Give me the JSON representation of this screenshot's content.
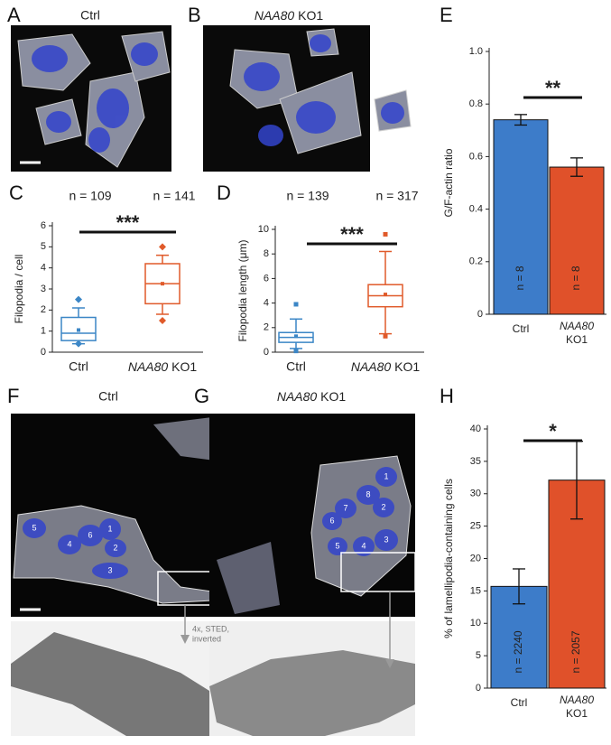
{
  "panels": {
    "A": {
      "label": "A",
      "title": "Ctrl"
    },
    "B": {
      "label": "B",
      "title": {
        "gene": "NAA80",
        "text": "KO1"
      }
    },
    "F": {
      "label": "F",
      "title": "Ctrl",
      "cell_labels": [
        "5",
        "6",
        "1",
        "4",
        "2",
        "3"
      ],
      "annotation": [
        "4x, STED,",
        "inverted"
      ]
    },
    "G": {
      "label": "G",
      "title": {
        "gene": "NAA80",
        "text": "KO1"
      },
      "cell_labels": [
        "1",
        "8",
        "7",
        "2",
        "6",
        "3",
        "5",
        "4"
      ]
    }
  },
  "charts": [
    {
      "panel": "C",
      "type": "box",
      "ylabel": "Filopodia / cell",
      "ylim": [
        0,
        6
      ],
      "yticks": [
        0,
        1,
        2,
        3,
        4,
        5,
        6
      ],
      "categories": [
        {
          "text": "Ctrl"
        },
        {
          "gene": "NAA80",
          "text": "KO1"
        }
      ],
      "n_labels": [
        "n = 109",
        "n = 141"
      ],
      "significance": "***",
      "outlier_marker": "diamond",
      "colors": [
        "#3b86c6",
        "#e05a2a"
      ],
      "boxes": [
        {
          "whisker_low": 0.4,
          "q1": 0.55,
          "median": 0.9,
          "q3": 1.65,
          "whisker_high": 2.1,
          "mean": 1.05,
          "outliers": [
            2.5,
            0.4
          ]
        },
        {
          "whisker_low": 1.8,
          "q1": 2.3,
          "median": 3.25,
          "q3": 4.2,
          "whisker_high": 4.6,
          "mean": 3.25,
          "outliers": [
            5.0,
            1.5
          ]
        }
      ]
    },
    {
      "panel": "D",
      "type": "box",
      "ylabel": "Filopodia length (μm)",
      "ylim": [
        0,
        10
      ],
      "yticks": [
        0,
        2,
        4,
        6,
        8,
        10
      ],
      "categories": [
        {
          "text": "Ctrl"
        },
        {
          "gene": "NAA80",
          "text": "KO1"
        }
      ],
      "n_labels": [
        "n = 139",
        "n = 317"
      ],
      "significance": "***",
      "outlier_marker": "square",
      "colors": [
        "#3b86c6",
        "#e05a2a"
      ],
      "boxes": [
        {
          "whisker_low": 0.3,
          "q1": 0.8,
          "median": 1.2,
          "q3": 1.6,
          "whisker_high": 2.7,
          "mean": 1.3,
          "outliers": [
            3.9,
            0.1
          ]
        },
        {
          "whisker_low": 1.5,
          "q1": 3.7,
          "median": 4.6,
          "q3": 5.5,
          "whisker_high": 8.2,
          "mean": 4.7,
          "outliers": [
            9.6,
            1.3
          ]
        }
      ]
    },
    {
      "panel": "E",
      "type": "bar",
      "ylabel": "G/F-actin ratio",
      "ylim": [
        0,
        1.0
      ],
      "yticks": [
        0,
        0.2,
        0.4,
        0.6,
        0.8,
        {
          "value": 1.0,
          "label": "1.0"
        }
      ],
      "categories": [
        {
          "text": "Ctrl"
        },
        {
          "gene": "NAA80",
          "text": "KO1"
        }
      ],
      "values": [
        0.74,
        0.56
      ],
      "errors": [
        0.02,
        0.035
      ],
      "colors": [
        "#3d7cc9",
        "#e0512a"
      ],
      "n_labels": [
        "n = 8",
        "n = 8"
      ],
      "significance": "**"
    },
    {
      "panel": "H",
      "type": "bar",
      "ylabel": "% of lamellipodia-containing cells",
      "ylim": [
        0,
        40
      ],
      "yticks": [
        0,
        5,
        10,
        15,
        20,
        25,
        30,
        35,
        40
      ],
      "categories": [
        {
          "text": "Ctrl"
        },
        {
          "gene": "NAA80",
          "text": "KO1"
        }
      ],
      "values": [
        15.7,
        32.1
      ],
      "errors": [
        2.7,
        6.0
      ],
      "colors": [
        "#3d7cc9",
        "#e0512a"
      ],
      "n_labels": [
        "n = 2240",
        "n = 2057"
      ],
      "significance": "*"
    }
  ]
}
